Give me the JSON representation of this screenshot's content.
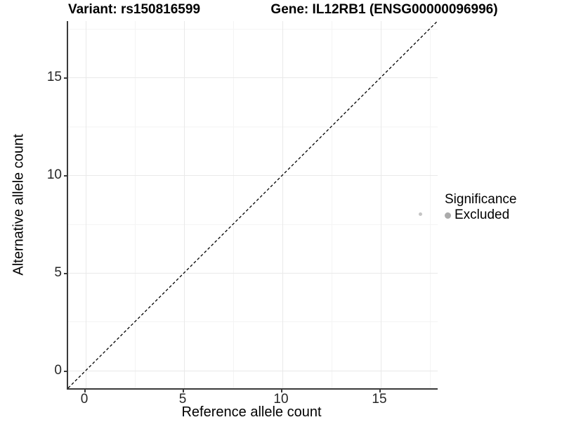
{
  "chart_data": {
    "type": "scatter",
    "titles": {
      "left": "Variant: rs150816599",
      "right": "Gene: IL12RB1 (ENSG00000096996)"
    },
    "xlabel": "Reference allele count",
    "ylabel": "Alternative allele count",
    "xlim": [
      -0.89,
      17.89
    ],
    "ylim": [
      -0.9,
      17.88
    ],
    "x_major_ticks": [
      0,
      5,
      10,
      15
    ],
    "x_minor_ticks": [
      2.5,
      7.5,
      12.5,
      17.5
    ],
    "y_major_ticks": [
      0,
      5,
      10,
      15
    ],
    "y_minor_ticks": [
      2.5,
      7.5,
      12.5,
      17.5
    ],
    "grid": "major-and-minor",
    "points": [
      {
        "x": 17,
        "y": 8,
        "series": "Excluded",
        "color": "#c5c5c5",
        "radius": 2.5
      }
    ],
    "reference_line": {
      "slope": 1,
      "intercept": 0,
      "style": "dashed",
      "color": "#000000"
    },
    "legend": {
      "title": "Significance",
      "position": "right",
      "items": [
        {
          "label": "Excluded",
          "color": "#ababab"
        }
      ]
    },
    "colors": {
      "grid_major": "#e9e9e9",
      "grid_minor": "#f4f4f4",
      "axis_line": "#3a3a3a",
      "tick_text": "#262626"
    }
  }
}
